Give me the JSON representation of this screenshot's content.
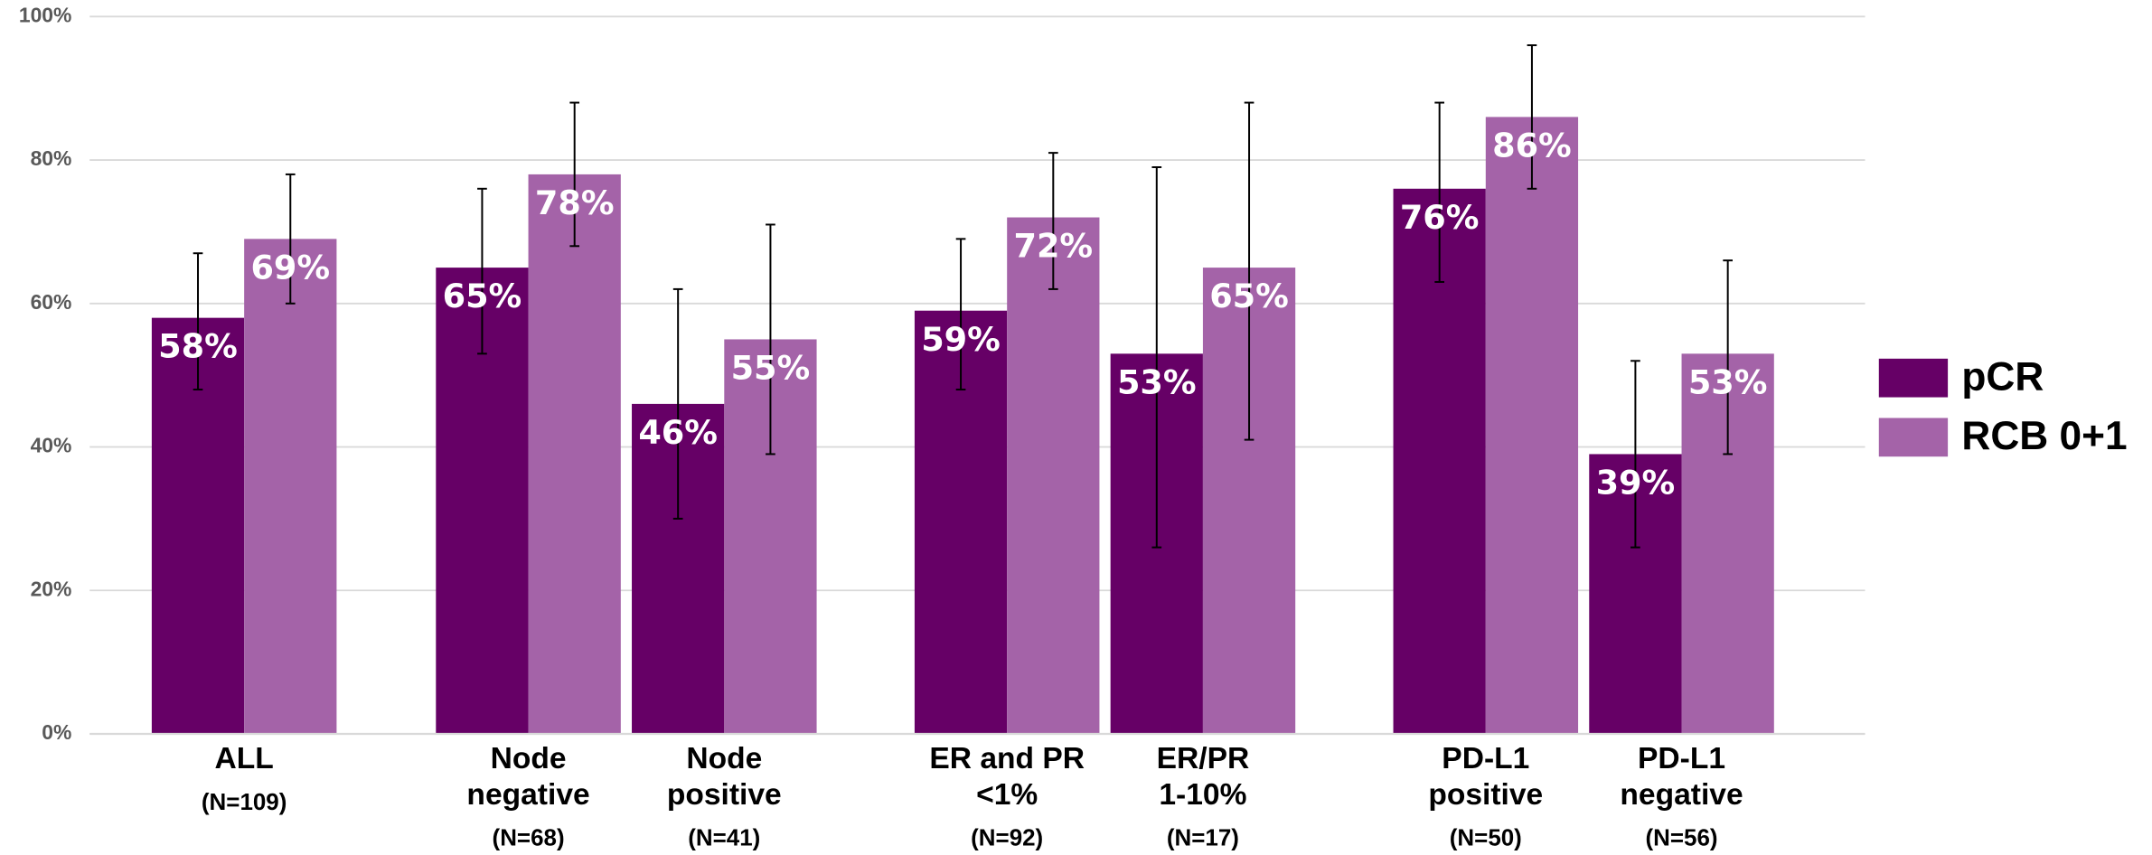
{
  "chart_data": {
    "type": "bar",
    "categories": [
      "ALL",
      "Node\nnegative",
      "Node\npositive",
      "ER and PR\n<1%",
      "ER/PR\n1-10%",
      "PD-L1\npositive",
      "PD-L1\nnegative"
    ],
    "category_notes": [
      "(N=109)",
      "(N=68)",
      "(N=41)",
      "(N=92)",
      "(N=17)",
      "(N=50)",
      "(N=56)"
    ],
    "series": [
      {
        "name": "pCR",
        "color": "#660066",
        "values": [
          58,
          65,
          46,
          59,
          53,
          76,
          39
        ],
        "value_labels": [
          "58%",
          "65%",
          "46%",
          "59%",
          "53%",
          "76%",
          "39%"
        ],
        "ci_low": [
          48,
          53,
          30,
          48,
          26,
          63,
          26
        ],
        "ci_high": [
          67,
          76,
          62,
          69,
          79,
          88,
          52
        ]
      },
      {
        "name": "RCB 0+1",
        "color": "#a463a8",
        "values": [
          69,
          78,
          55,
          72,
          65,
          86,
          53
        ],
        "value_labels": [
          "69%",
          "78%",
          "55%",
          "72%",
          "65%",
          "86%",
          "53%"
        ],
        "ci_low": [
          60,
          68,
          39,
          62,
          41,
          76,
          39
        ],
        "ci_high": [
          78,
          88,
          71,
          81,
          88,
          96,
          66
        ]
      }
    ],
    "ylim": [
      0,
      100
    ],
    "yticks": [
      {
        "value": 0,
        "label": "0%"
      },
      {
        "value": 20,
        "label": "20%"
      },
      {
        "value": 40,
        "label": "40%"
      },
      {
        "value": 60,
        "label": "60%"
      },
      {
        "value": 80,
        "label": "80%"
      },
      {
        "value": 100,
        "label": "100%"
      }
    ],
    "grid": true,
    "legend": "right"
  }
}
